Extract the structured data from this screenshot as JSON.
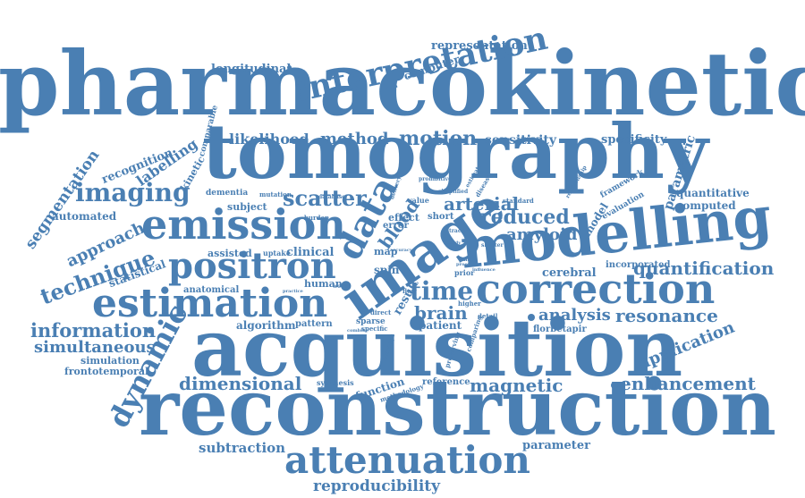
{
  "colors": {
    "primary": "#4a7fb3",
    "light": "#6e9cc6"
  },
  "words": {
    "pharmacokinetic": "pharmacokinetic",
    "tomography": "tomography",
    "acquisition": "acquisition",
    "reconstruction": "reconstruction",
    "modelling": "modelling",
    "image": "image",
    "interpretation": "interpretation",
    "correction": "correction",
    "emission": "emission",
    "estimation": "estimation",
    "positron": "positron",
    "attenuation": "attenuation",
    "dynamic": "dynamic",
    "data": "data",
    "imaging": "imaging",
    "technique": "technique",
    "motion": "motion",
    "method": "method",
    "likelihood": "likelihood",
    "scatter": "scatter",
    "segmentation": "segmentation",
    "approach": "approach",
    "information": "information",
    "simultaneous": "simultaneous",
    "quantification": "quantification",
    "resonance": "resonance",
    "reduced": "reduced",
    "arterial": "arterial",
    "amyloid": "amyloid",
    "time": "time",
    "brain": "brain",
    "analysis": "analysis",
    "magnetic": "magnetic",
    "enhancement": "enhancement",
    "application": "application",
    "dimensional": "dimensional",
    "reproducibility": "reproducibility",
    "subtraction": "subtraction",
    "parameter": "parameter",
    "representation": "representation",
    "computer": "computer",
    "longitudinal": "longitudinal",
    "sensitivity": "sensitivity",
    "specificity": "specificity",
    "parametric": "parametric",
    "quantitative": "quantitative",
    "computed": "computed",
    "recognition": "recognition",
    "labelling": "labelling",
    "kinetic": "kinetic",
    "comparable": "comparable",
    "automated": "automated",
    "statistical": "statistical",
    "assisted": "assisted",
    "anatomical": "anatomical",
    "clinical": "clinical",
    "human": "human",
    "uptake": "uptake",
    "subject": "subject",
    "dementia": "dementia",
    "mutation": "mutation",
    "burden": "burden",
    "algorithm": "algorithm",
    "pattern": "pattern",
    "simulation": "simulation",
    "frontotemporal": "frontotemporal",
    "cerebral": "cerebral",
    "incorporated": "incorporated",
    "florbetapir": "florbetapir",
    "patient": "patient",
    "result": "result",
    "blood": "blood",
    "spin": "spin",
    "map": "map",
    "error": "error",
    "effect": "effect",
    "short": "short",
    "value": "value",
    "model": "model",
    "framework": "framework",
    "evaluation": "evaluation",
    "standard": "standard",
    "reference": "reference",
    "function": "function",
    "methodology": "methodology",
    "synthesis": "synthesis",
    "sparse": "sparse",
    "direct": "direct",
    "specific": "specific",
    "higher": "higher",
    "comparing": "comparing",
    "detail": "detail",
    "prior": "prior",
    "preserving": "preserving",
    "concept": "concept",
    "flow": "flow",
    "shorter": "shorter",
    "prohibitive": "prohibitive",
    "simplified": "simplified",
    "disease": "disease",
    "estimate": "estimate",
    "relationship": "relationship",
    "delivery": "delivery",
    "database": "database",
    "work": "work",
    "practice": "practice",
    "combine": "combine",
    "accuracy": "accuracy",
    "tracer": "tracer",
    "study": "study",
    "feasible": "feasible",
    "lead": "lead",
    "proof": "proof",
    "influence": "influence",
    "expression": "expression",
    "content": "content",
    "associated": "associated",
    "enable": "enable",
    "current": "current",
    "jmap": "jmap",
    "retain": "retain",
    "impact": "impact",
    "several": "several",
    "level": "level",
    "reduction": "reduction",
    "focus": "focus",
    "strategy": "strategy",
    "problem": "problem",
    "property": "property",
    "novel": "novel",
    "selection": "selection",
    "slice": "slice"
  }
}
